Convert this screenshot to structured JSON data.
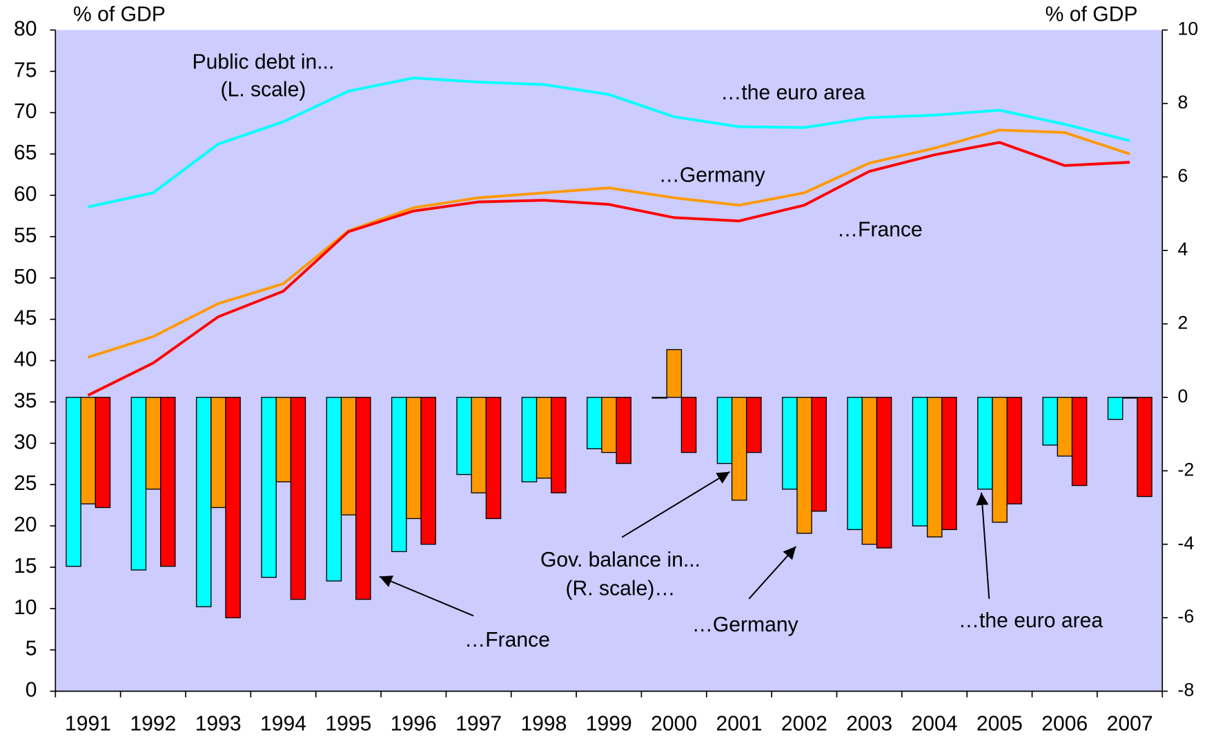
{
  "chart_data": {
    "type": "bar_line",
    "y_label": "% of GDP",
    "y2_label": "% of GDP",
    "annotations": [
      "Public debt in...",
      "(L. scale)",
      "…the euro area",
      "…Germany",
      "…France",
      "Gov. balance in...",
      "(R. scale)…",
      "…France",
      "…Germany",
      "…the euro area"
    ],
    "categories": [
      "1991",
      "1992",
      "1993",
      "1994",
      "1995",
      "1996",
      "1997",
      "1998",
      "1999",
      "2000",
      "2001",
      "2002",
      "2003",
      "2004",
      "2005",
      "2006",
      "2007"
    ],
    "series": [
      {
        "kind": "line",
        "color": "#00ffff",
        "values": [
          58.6,
          60.3,
          66.2,
          68.9,
          72.6,
          74.2,
          73.7,
          73.4,
          72.2,
          69.5,
          68.3,
          68.2,
          69.4,
          69.7,
          70.3,
          68.6,
          66.6
        ]
      },
      {
        "kind": "line",
        "color": "#ff9900",
        "values": [
          40.4,
          42.9,
          46.9,
          49.3,
          55.7,
          58.5,
          59.7,
          60.3,
          60.9,
          59.7,
          58.8,
          60.3,
          63.9,
          65.7,
          67.9,
          67.6,
          65.0
        ]
      },
      {
        "kind": "line",
        "color": "#ff0000",
        "values": [
          35.8,
          39.7,
          45.3,
          48.4,
          55.6,
          58.1,
          59.2,
          59.4,
          58.9,
          57.3,
          56.9,
          58.8,
          62.9,
          64.9,
          66.4,
          63.6,
          64.0
        ]
      },
      {
        "kind": "bar",
        "axis": "y2",
        "color": "#00ffff",
        "values": [
          -4.6,
          -4.7,
          -5.7,
          -4.9,
          -5.0,
          -4.2,
          -2.1,
          -2.3,
          -1.4,
          0.0,
          -1.8,
          -2.5,
          -3.6,
          -3.5,
          -2.5,
          -1.3,
          -0.6
        ]
      },
      {
        "kind": "bar",
        "axis": "y2",
        "color": "#ff9900",
        "values": [
          -2.9,
          -2.5,
          -3.0,
          -2.3,
          -3.2,
          -3.3,
          -2.6,
          -2.2,
          -1.5,
          1.3,
          -2.8,
          -3.7,
          -4.0,
          -3.8,
          -3.4,
          -1.6,
          0.0
        ]
      },
      {
        "kind": "bar",
        "axis": "y2",
        "color": "#ff0000",
        "values": [
          -3.0,
          -4.6,
          -6.0,
          -5.5,
          -5.5,
          -4.0,
          -3.3,
          -2.6,
          -1.8,
          -1.5,
          -1.5,
          -3.1,
          -4.1,
          -3.6,
          -2.9,
          -2.4,
          -2.7
        ]
      }
    ],
    "ylim": [
      0,
      80
    ],
    "yticks": [
      0,
      5,
      10,
      15,
      20,
      25,
      30,
      35,
      40,
      45,
      50,
      55,
      60,
      65,
      70,
      75,
      80
    ],
    "y2lim": [
      -8,
      10
    ],
    "y2ticks": [
      -8,
      -6,
      -4,
      -2,
      0,
      2,
      4,
      6,
      8,
      10
    ],
    "background": "#ccccff"
  }
}
